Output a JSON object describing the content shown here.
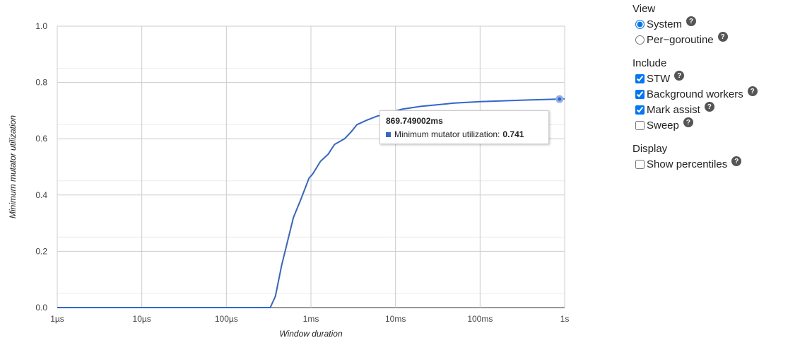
{
  "chart_data": {
    "type": "line",
    "xlabel": "Window duration",
    "ylabel": "Minimum mutator utilization",
    "x_scale": "log",
    "xlim": [
      "1µs",
      "1s"
    ],
    "x_ticks": [
      "1µs",
      "10µs",
      "100µs",
      "1ms",
      "10ms",
      "100ms",
      "1s"
    ],
    "ylim": [
      0,
      1
    ],
    "y_ticks": [
      "0.0",
      "0.2",
      "0.4",
      "0.6",
      "0.8",
      "1.0"
    ],
    "grid": true,
    "series": [
      {
        "name": "Minimum mutator utilization",
        "color": "#3366cc",
        "x_seconds": [
          1e-06,
          1e-05,
          0.0001,
          0.00033,
          0.00038,
          0.00045,
          0.00062,
          0.00075,
          0.00095,
          0.00105,
          0.0013,
          0.0016,
          0.0019,
          0.0025,
          0.003,
          0.0035,
          0.0045,
          0.006,
          0.008,
          0.012,
          0.02,
          0.03,
          0.05,
          0.1,
          0.2,
          0.4,
          0.87,
          1.0
        ],
        "values": [
          0,
          0,
          0,
          0,
          0.04,
          0.15,
          0.32,
          0.38,
          0.46,
          0.475,
          0.52,
          0.545,
          0.58,
          0.6,
          0.625,
          0.65,
          0.665,
          0.68,
          0.69,
          0.705,
          0.715,
          0.72,
          0.727,
          0.732,
          0.735,
          0.738,
          0.741,
          0.742
        ]
      }
    ],
    "highlighted_point": {
      "x_seconds": 0.869749002,
      "value": 0.741
    }
  },
  "tooltip": {
    "title": "869.749002ms",
    "series_label": "Minimum mutator utilization:",
    "value": "0.741",
    "swatch_color": "#3366cc"
  },
  "controls": {
    "view": {
      "title": "View",
      "options": [
        {
          "label": "System",
          "checked": true
        },
        {
          "label": "Per−goroutine",
          "checked": false
        }
      ]
    },
    "include": {
      "title": "Include",
      "options": [
        {
          "label": "STW",
          "checked": true
        },
        {
          "label": "Background workers",
          "checked": true
        },
        {
          "label": "Mark assist",
          "checked": true
        },
        {
          "label": "Sweep",
          "checked": false
        }
      ]
    },
    "display": {
      "title": "Display",
      "options": [
        {
          "label": "Show percentiles",
          "checked": false
        }
      ]
    },
    "help_glyph": "?"
  }
}
